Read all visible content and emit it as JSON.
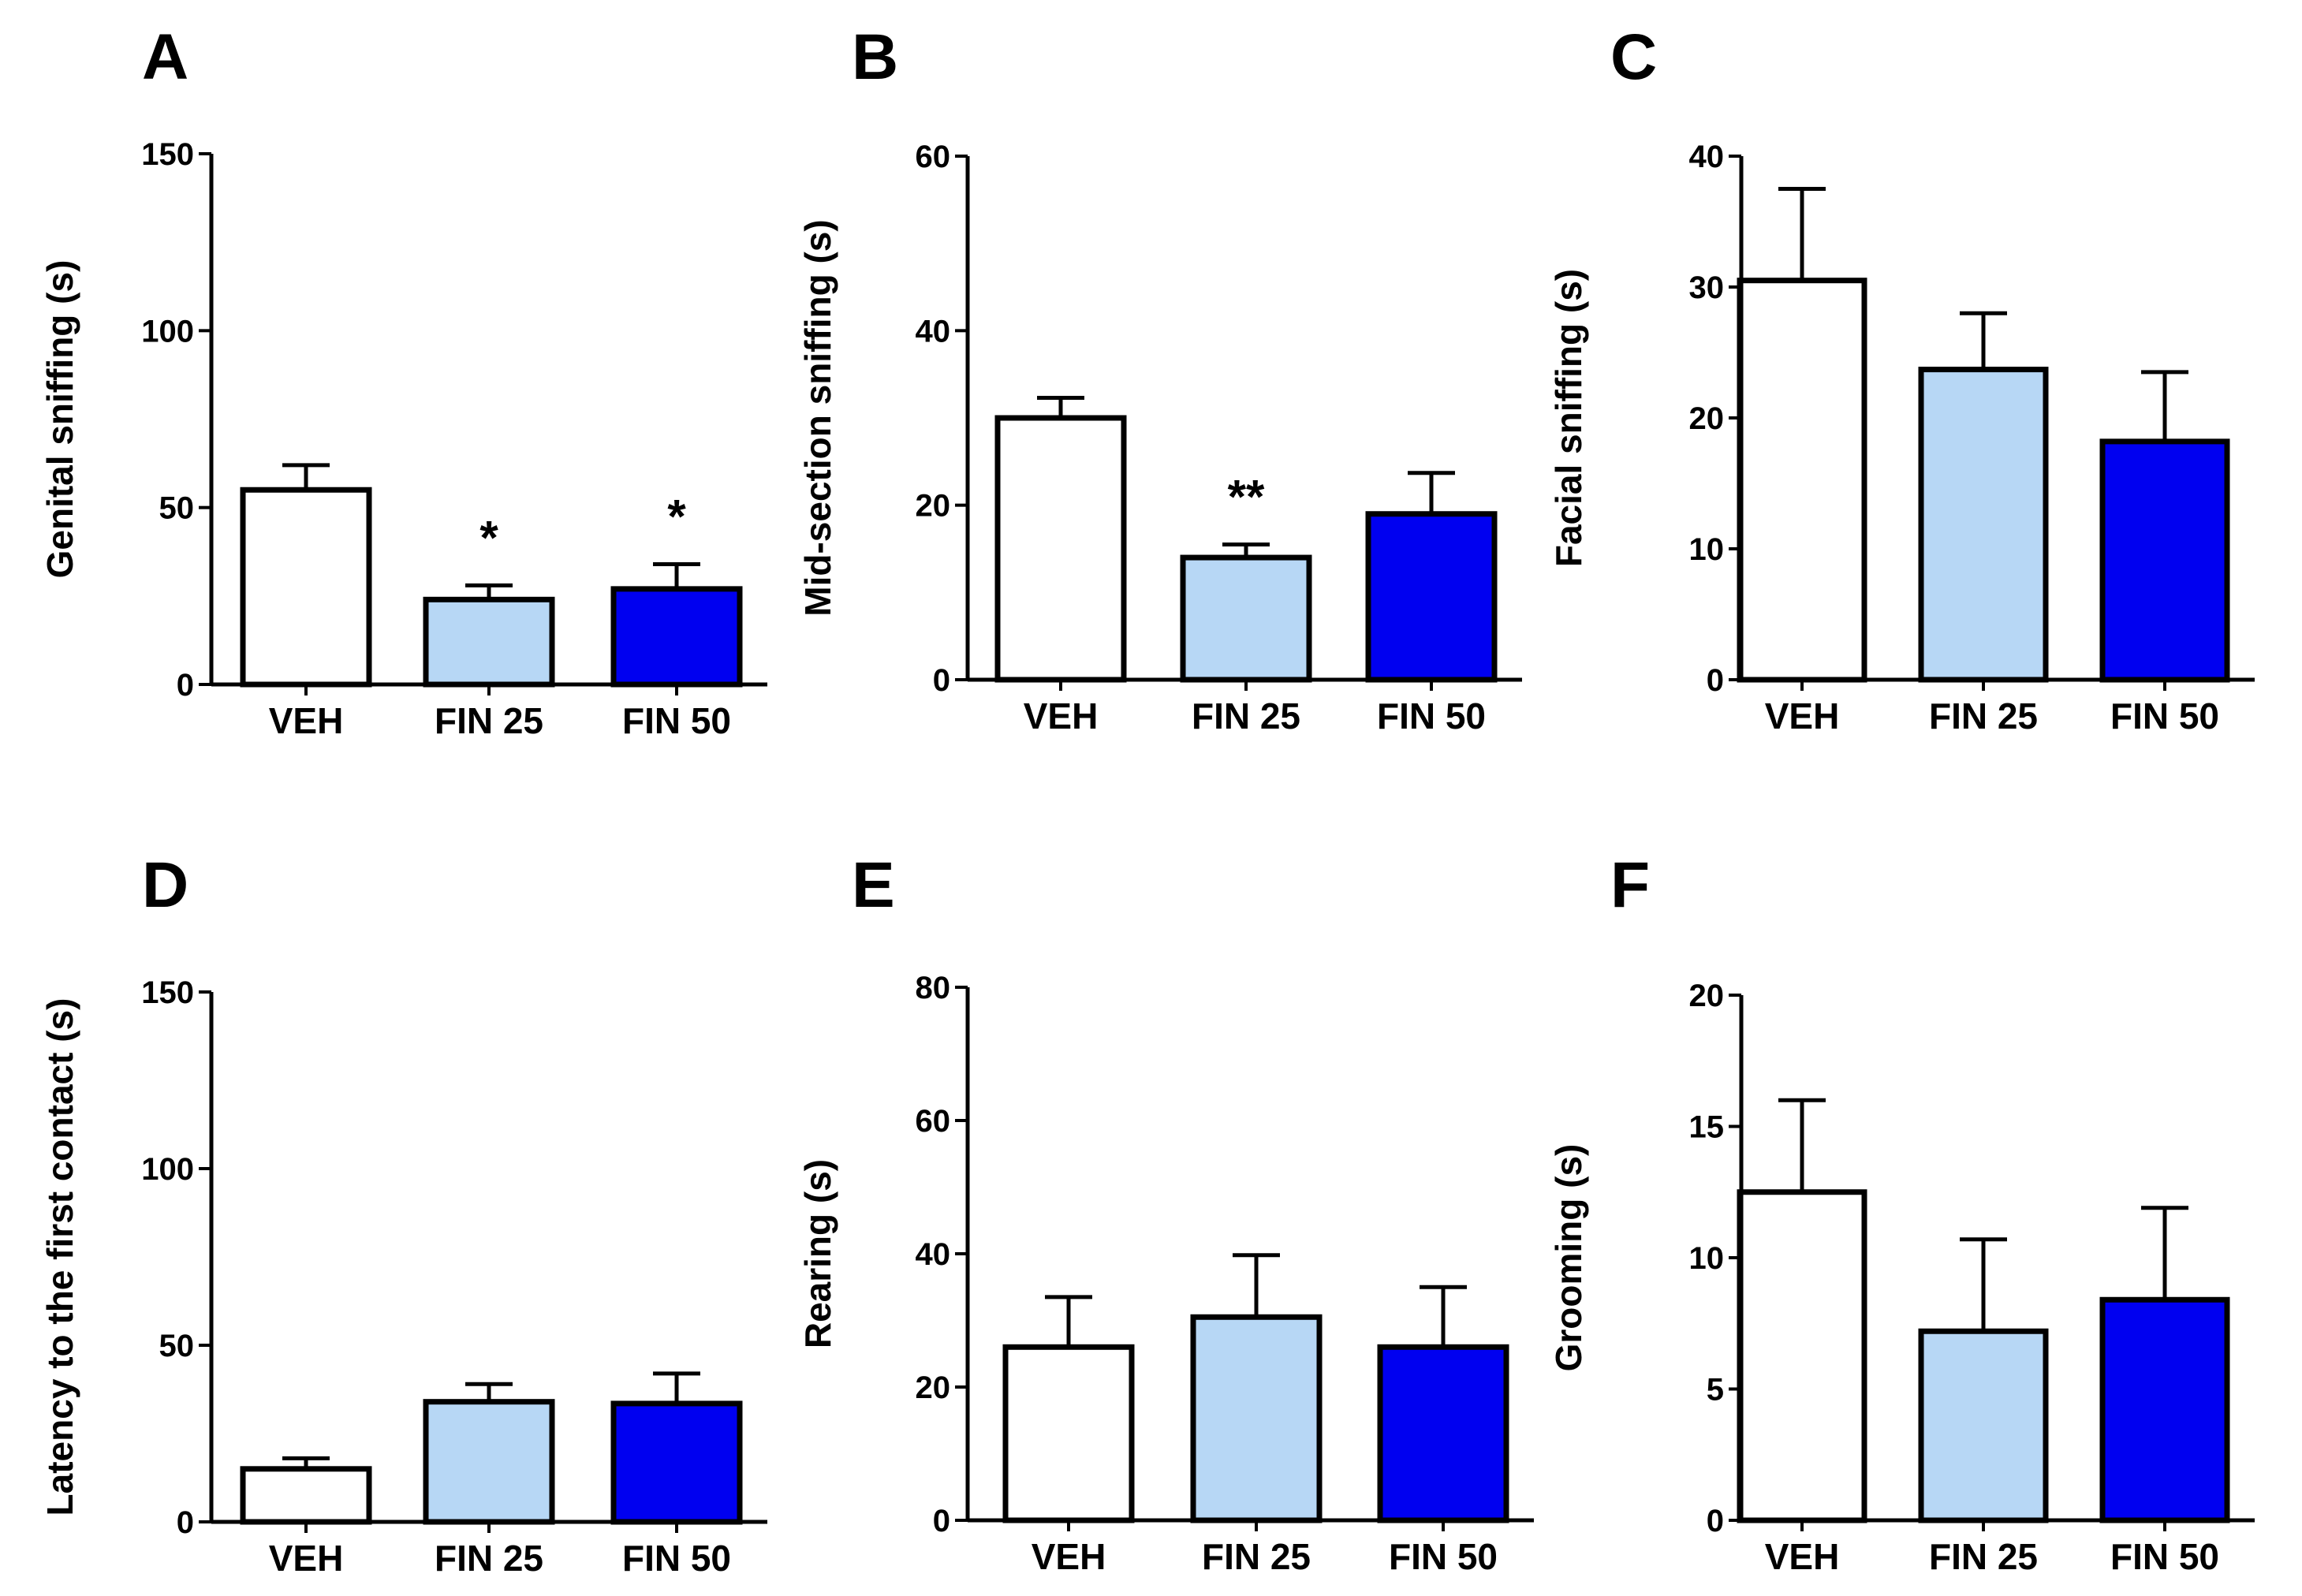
{
  "figure": {
    "categories": [
      "VEH",
      "FIN 25",
      "FIN 50"
    ],
    "bar_colors": [
      "#ffffff",
      "#b7d7f5",
      "#0000f0"
    ]
  },
  "chart_data": [
    {
      "panel": "A",
      "type": "bar",
      "ylabel": "Genital sniffing (s)",
      "ylim": [
        0,
        150
      ],
      "yticks": [
        0,
        50,
        100,
        150
      ],
      "categories": [
        "VEH",
        "FIN 25",
        "FIN 50"
      ],
      "values": [
        55,
        24,
        27
      ],
      "errors": [
        7,
        4,
        7
      ],
      "annotations": [
        "",
        "*",
        "*"
      ]
    },
    {
      "panel": "B",
      "type": "bar",
      "ylabel": "Mid-section sniffing (s)",
      "ylim": [
        0,
        60
      ],
      "yticks": [
        0,
        20,
        40,
        60
      ],
      "categories": [
        "VEH",
        "FIN 25",
        "FIN 50"
      ],
      "values": [
        30,
        14,
        19
      ],
      "errors": [
        2.3,
        1.5,
        4.7
      ],
      "annotations": [
        "",
        "**",
        ""
      ]
    },
    {
      "panel": "C",
      "type": "bar",
      "ylabel": "Facial sniffing (s)",
      "ylim": [
        0,
        40
      ],
      "yticks": [
        0,
        10,
        20,
        30,
        40
      ],
      "categories": [
        "VEH",
        "FIN 25",
        "FIN 50"
      ],
      "values": [
        30.5,
        23.7,
        18.2
      ],
      "errors": [
        7,
        4.3,
        5.3
      ],
      "annotations": [
        "",
        "",
        ""
      ]
    },
    {
      "panel": "D",
      "type": "bar",
      "ylabel": "Latency to the first contact (s)",
      "ylim": [
        0,
        150
      ],
      "yticks": [
        0,
        50,
        100,
        150
      ],
      "categories": [
        "VEH",
        "FIN 25",
        "FIN 50"
      ],
      "values": [
        15,
        34,
        33.5
      ],
      "errors": [
        3,
        5,
        8.5
      ],
      "annotations": [
        "",
        "",
        ""
      ]
    },
    {
      "panel": "E",
      "type": "bar",
      "ylabel": "Rearing (s)",
      "ylim": [
        0,
        80
      ],
      "yticks": [
        0,
        20,
        40,
        60,
        80
      ],
      "categories": [
        "VEH",
        "FIN 25",
        "FIN 50"
      ],
      "values": [
        26,
        30.5,
        26
      ],
      "errors": [
        7.5,
        9.3,
        9
      ],
      "annotations": [
        "",
        "",
        ""
      ]
    },
    {
      "panel": "F",
      "type": "bar",
      "ylabel": "Grooming (s)",
      "ylim": [
        0,
        20
      ],
      "yticks": [
        0,
        5,
        10,
        15,
        20
      ],
      "categories": [
        "VEH",
        "FIN 25",
        "FIN 50"
      ],
      "values": [
        12.5,
        7.2,
        8.4
      ],
      "errors": [
        3.5,
        3.5,
        3.5
      ],
      "annotations": [
        "",
        "",
        ""
      ]
    }
  ]
}
